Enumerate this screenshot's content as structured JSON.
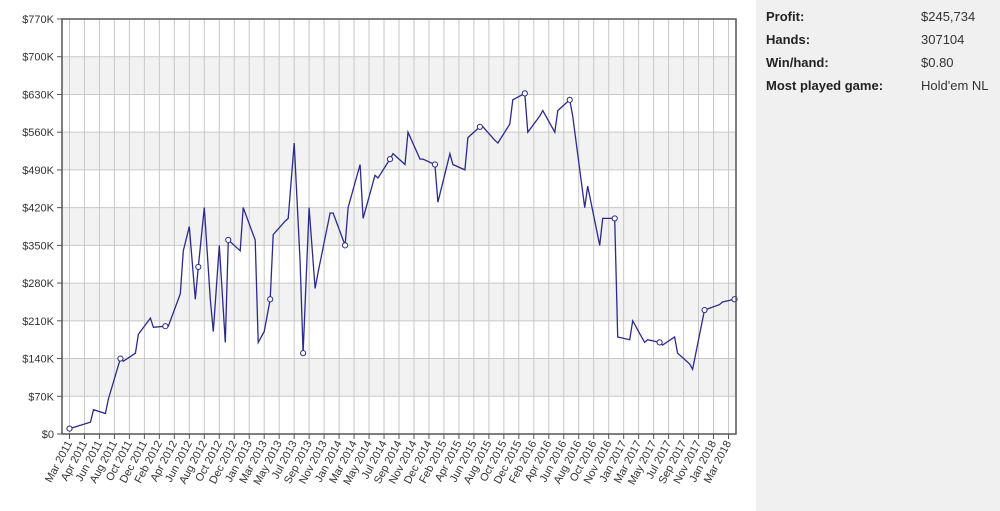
{
  "stats": {
    "profit_label": "Profit:",
    "profit_value": "$245,734",
    "hands_label": "Hands:",
    "hands_value": "307104",
    "winhand_label": "Win/hand:",
    "winhand_value": "$0.80",
    "game_label": "Most played game:",
    "game_value": "Hold'em NL"
  },
  "colors": {
    "line": "#2b2b8c",
    "grid": "#c8c8c8",
    "band": "#f2f2f2",
    "panel": "#f0f0f0"
  },
  "chart_data": {
    "type": "line",
    "title": "",
    "xlabel": "",
    "ylabel": "",
    "ylim": [
      0,
      770000
    ],
    "y_ticks": [
      0,
      70000,
      140000,
      210000,
      280000,
      350000,
      420000,
      490000,
      560000,
      630000,
      700000,
      770000
    ],
    "y_tick_labels": [
      "$0",
      "$70K",
      "$140K",
      "$210K",
      "$280K",
      "$350K",
      "$420K",
      "$490K",
      "$560K",
      "$630K",
      "$700K",
      "$770K"
    ],
    "x_tick_labels": [
      "Mar 2011",
      "Apr 2011",
      "Jun 2011",
      "Aug 2011",
      "Oct 2011",
      "Dec 2011",
      "Feb 2012",
      "Apr 2012",
      "Jun 2012",
      "Aug 2012",
      "Oct 2012",
      "Dec 2012",
      "Jan 2013",
      "Mar 2013",
      "May 2013",
      "Jul 2013",
      "Sep 2013",
      "Nov 2013",
      "Jan 2014",
      "Mar 2014",
      "May 2014",
      "Jul 2014",
      "Sep 2014",
      "Nov 2014",
      "Dec 2014",
      "Feb 2015",
      "Apr 2015",
      "Jun 2015",
      "Aug 2015",
      "Oct 2015",
      "Dec 2015",
      "Feb 2016",
      "Apr 2016",
      "Jun 2016",
      "Aug 2016",
      "Oct 2016",
      "Nov 2016",
      "Jan 2017",
      "Mar 2017",
      "May 2017",
      "Jul 2017",
      "Sep 2017",
      "Nov 2017",
      "Jan 2018",
      "Mar 2018"
    ],
    "grid": true,
    "legend": "none",
    "series": [
      {
        "x": [
          "Mar 2011",
          "Apr 2011",
          "Apr 2011",
          "Jun 2011",
          "Jun 2011",
          "Aug 2011",
          "Aug 2011",
          "Oct 2011",
          "Oct 2011",
          "Dec 2011",
          "Dec 2011",
          "Feb 2012",
          "Feb 2012",
          "Apr 2012",
          "Apr 2012",
          "Jun 2012",
          "Jun 2012",
          "Jun 2012",
          "Aug 2012",
          "Aug 2012",
          "Aug 2012",
          "Oct 2012",
          "Oct 2012",
          "Oct 2012",
          "Dec 2012",
          "Dec 2012",
          "Jan 2013",
          "Jan 2013",
          "Mar 2013",
          "Mar 2013",
          "Mar 2013",
          "May 2013",
          "May 2013",
          "Jul 2013",
          "Jul 2013",
          "Jul 2013",
          "Sep 2013",
          "Sep 2013",
          "Sep 2013",
          "Nov 2013",
          "Nov 2013",
          "Jan 2014",
          "Jan 2014",
          "Mar 2014",
          "Mar 2014",
          "May 2014",
          "May 2014",
          "Jul 2014",
          "Jul 2014",
          "Sep 2014",
          "Sep 2014",
          "Nov 2014",
          "Nov 2014",
          "Dec 2014",
          "Dec 2014",
          "Feb 2015",
          "Feb 2015",
          "Apr 2015",
          "Apr 2015",
          "Jun 2015",
          "Jun 2015",
          "Aug 2015",
          "Aug 2015",
          "Oct 2015",
          "Oct 2015",
          "Dec 2015",
          "Dec 2015",
          "Feb 2016",
          "Feb 2016",
          "Apr 2016",
          "Apr 2016",
          "Jun 2016",
          "Jun 2016",
          "Aug 2016",
          "Aug 2016",
          "Oct 2016",
          "Oct 2016",
          "Nov 2016",
          "Nov 2016",
          "Jan 2017",
          "Jan 2017",
          "Mar 2017",
          "Mar 2017",
          "May 2017",
          "May 2017",
          "Jul 2017",
          "Jul 2017",
          "Sep 2017",
          "Sep 2017",
          "Nov 2017",
          "Nov 2017",
          "Jan 2018",
          "Jan 2018",
          "Mar 2018",
          "Mar 2018"
        ],
        "values": [
          10000,
          15000,
          22000,
          45000,
          38000,
          65000,
          140000,
          135000,
          150000,
          185000,
          215000,
          198000,
          200000,
          200000,
          260000,
          340000,
          385000,
          250000,
          310000,
          420000,
          250000,
          190000,
          350000,
          170000,
          360000,
          340000,
          420000,
          360000,
          170000,
          190000,
          250000,
          370000,
          395000,
          400000,
          540000,
          320000,
          150000,
          420000,
          270000,
          300000,
          410000,
          410000,
          350000,
          420000,
          500000,
          400000,
          480000,
          475000,
          510000,
          520000,
          500000,
          560000,
          510000,
          510000,
          500000,
          430000,
          520000,
          500000,
          490000,
          550000,
          570000,
          570000,
          545000,
          540000,
          575000,
          620000,
          632000,
          560000,
          590000,
          600000,
          560000,
          600000,
          620000,
          590000,
          420000,
          460000,
          350000,
          400000,
          400000,
          180000,
          175000,
          210000,
          170000,
          175000,
          170000,
          165000,
          180000,
          150000,
          130000,
          120000,
          230000,
          232000,
          240000,
          245000,
          250000
        ]
      }
    ]
  }
}
